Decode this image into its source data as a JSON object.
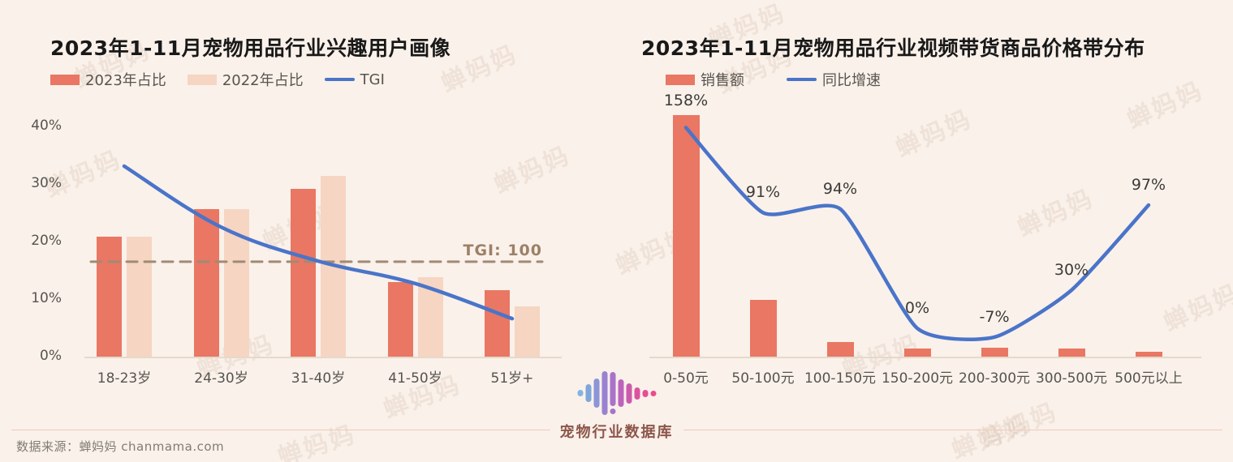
{
  "page": {
    "background": "#FAF1EA",
    "watermark": "蝉妈妈",
    "footer": {
      "brand": "宠物行业数据库",
      "source": "数据来源：蝉妈妈 chanmama.com"
    }
  },
  "chart_data": [
    {
      "type": "bar+line",
      "title": "2023年1-11月宠物用品行业兴趣用户画像",
      "categories": [
        "18-23岁",
        "24-30岁",
        "31-40岁",
        "41-50岁",
        "51岁+"
      ],
      "ylim": [
        0,
        40
      ],
      "ytick_labels": [
        "0%",
        "10%",
        "20%",
        "30%",
        "40%"
      ],
      "ytick_values": [
        0,
        10,
        20,
        30,
        40
      ],
      "grid": "off",
      "legend_position": "top-left",
      "series": [
        {
          "name": "2023年占比",
          "type": "bar",
          "color": "#E97763",
          "unit": "%",
          "values": [
            20.8,
            25.6,
            29.2,
            13.0,
            11.6
          ]
        },
        {
          "name": "2022年占比",
          "type": "bar",
          "color": "#F6D5C3",
          "unit": "%",
          "values": [
            20.8,
            25.6,
            31.4,
            13.8,
            8.7
          ]
        },
        {
          "name": "TGI",
          "type": "line",
          "color": "#4A74C9",
          "values_pct_axis": [
            33.1,
            22.5,
            16.6,
            12.7,
            6.6
          ]
        }
      ],
      "reference_line": {
        "label": "TGI: 100",
        "value_pct_axis": 16.5,
        "style": "dashed",
        "color": "#A08B74"
      }
    },
    {
      "type": "bar+line",
      "title": "2023年1-11月宠物用品行业视频带货商品价格带分布",
      "categories": [
        "0-50元",
        "50-100元",
        "100-150元",
        "150-200元",
        "200-300元",
        "300-500元",
        "500元以上"
      ],
      "grid": "off",
      "legend_position": "top-left",
      "series": [
        {
          "name": "销售额",
          "type": "bar",
          "color": "#E97763",
          "values_rel": [
            100,
            23.5,
            6.0,
            3.4,
            3.7,
            3.4,
            2.0
          ]
        },
        {
          "name": "同比增速",
          "type": "line",
          "color": "#4A74C9",
          "unit": "%",
          "values": [
            158,
            91,
            94,
            0,
            -7,
            30,
            97
          ],
          "labels": [
            "158%",
            "91%",
            "94%",
            "0%",
            "-7%",
            "30%",
            "97%"
          ]
        }
      ]
    }
  ],
  "logo": {
    "name": "waveform-logo",
    "colors": [
      "#82B4E2",
      "#7EA6DB",
      "#8C95D6",
      "#9A82D0",
      "#A973C9",
      "#BC64BC",
      "#CC5AAC",
      "#DC529E",
      "#E64D94",
      "#EE4A8C"
    ]
  }
}
